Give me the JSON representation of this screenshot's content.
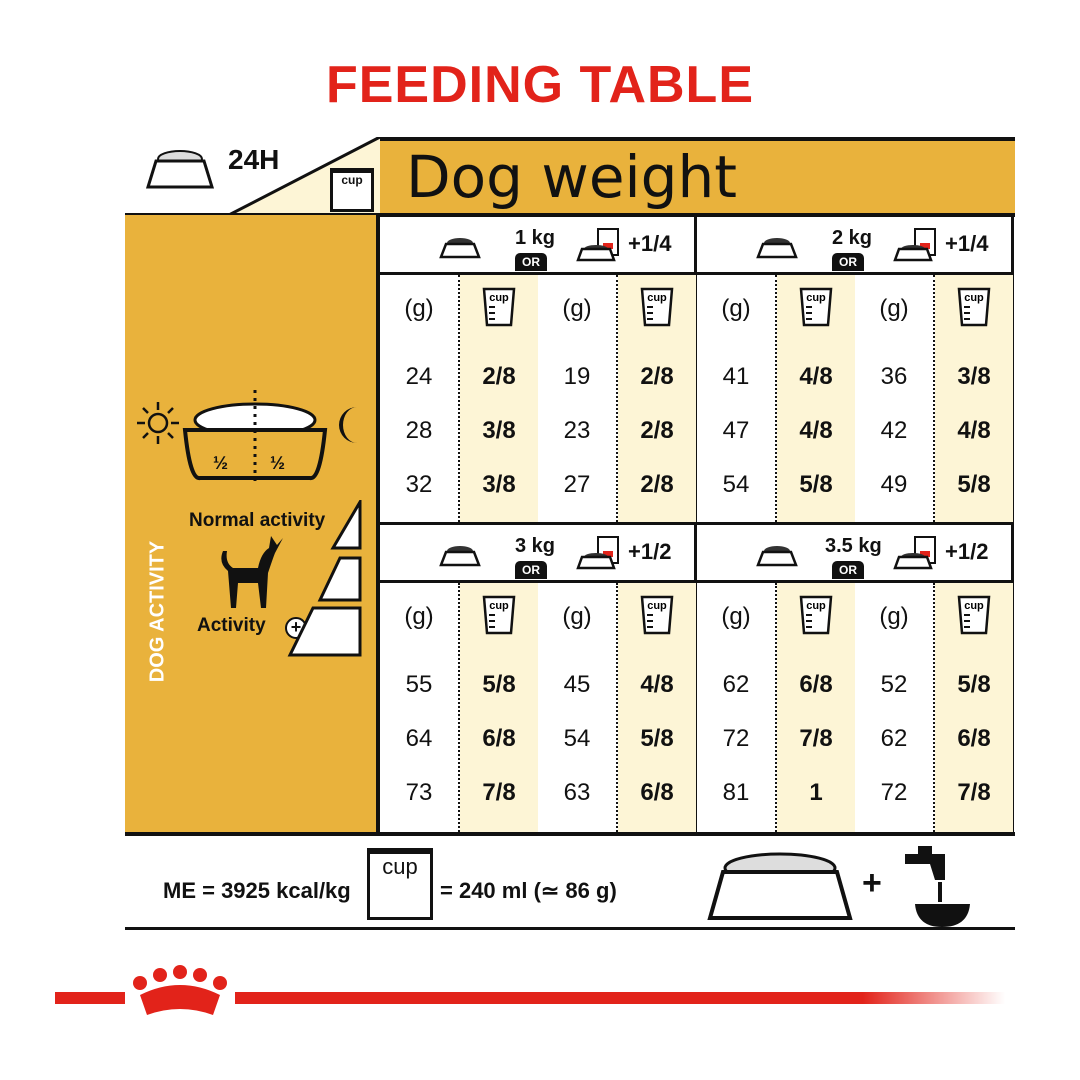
{
  "title": "FEEDING TABLE",
  "header": {
    "hours": "24H",
    "cup_label": "cup",
    "dog_weight": "Dog weight"
  },
  "left_panel": {
    "half_left": "½",
    "half_right": "½",
    "vertical_label": "DOG ACTIVITY",
    "normal_activity": "Normal activity",
    "activity_plus": "Activity"
  },
  "table": {
    "unit_g": "(g)",
    "unit_cup": "cup",
    "or_label": "OR",
    "blocks": [
      {
        "weight": "1 kg",
        "extra": "+1/4",
        "columns": [
          {
            "rows": [
              [
                "24",
                "2/8"
              ],
              [
                "28",
                "3/8"
              ],
              [
                "32",
                "3/8"
              ]
            ]
          },
          {
            "rows": [
              [
                "19",
                "2/8"
              ],
              [
                "23",
                "2/8"
              ],
              [
                "27",
                "2/8"
              ]
            ]
          }
        ]
      },
      {
        "weight": "2 kg",
        "extra": "+1/4",
        "columns": [
          {
            "rows": [
              [
                "41",
                "4/8"
              ],
              [
                "47",
                "4/8"
              ],
              [
                "54",
                "5/8"
              ]
            ]
          },
          {
            "rows": [
              [
                "36",
                "3/8"
              ],
              [
                "42",
                "4/8"
              ],
              [
                "49",
                "5/8"
              ]
            ]
          }
        ]
      },
      {
        "weight": "3 kg",
        "extra": "+1/2",
        "columns": [
          {
            "rows": [
              [
                "55",
                "5/8"
              ],
              [
                "64",
                "6/8"
              ],
              [
                "73",
                "7/8"
              ]
            ]
          },
          {
            "rows": [
              [
                "45",
                "4/8"
              ],
              [
                "54",
                "5/8"
              ],
              [
                "63",
                "6/8"
              ]
            ]
          }
        ]
      },
      {
        "weight": "3.5 kg",
        "extra": "+1/2",
        "columns": [
          {
            "rows": [
              [
                "62",
                "6/8"
              ],
              [
                "72",
                "7/8"
              ],
              [
                "81",
                "1"
              ]
            ]
          },
          {
            "rows": [
              [
                "52",
                "5/8"
              ],
              [
                "62",
                "6/8"
              ],
              [
                "72",
                "7/8"
              ]
            ]
          }
        ]
      }
    ]
  },
  "footer": {
    "energy": "ME = 3925 kcal/kg",
    "cup_label": "cup",
    "cup_equiv": "= 240 ml (≃ 86 g)",
    "plus": "+"
  },
  "colors": {
    "brand_red": "#e2231a",
    "gold": "#e9b23c",
    "cream": "#fdf5d6"
  },
  "icons": [
    "bowl-icon",
    "cup-icon",
    "wet-food-pouch-icon",
    "sun-icon",
    "moon-icon",
    "dog-icon",
    "plus-circle-icon",
    "water-tap-icon",
    "royal-canin-crown-logo"
  ]
}
